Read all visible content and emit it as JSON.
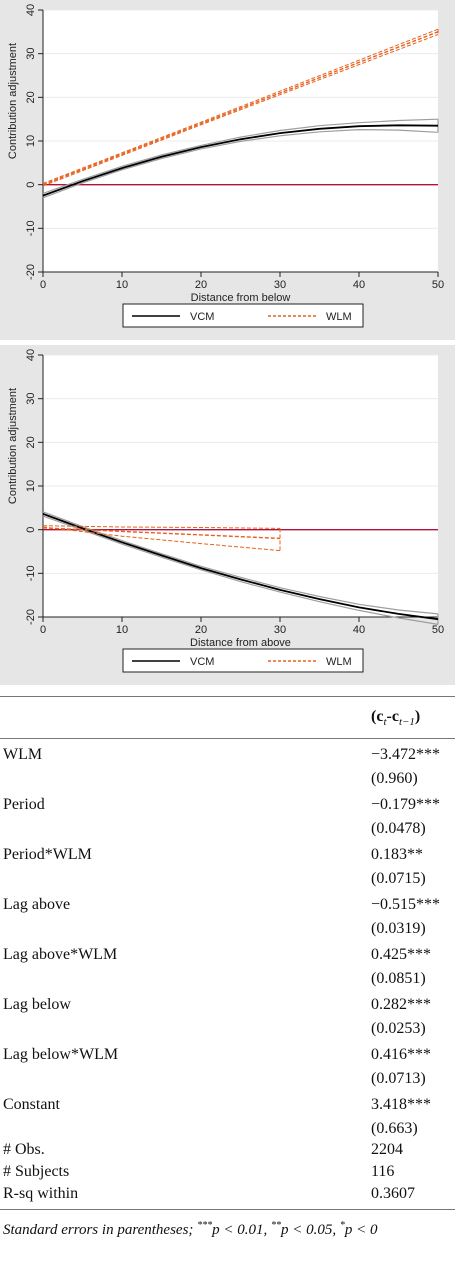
{
  "chart_data": [
    {
      "type": "line",
      "xlabel": "Distance from below",
      "ylabel": "Contribution adjustment",
      "xlim": [
        0,
        50
      ],
      "ylim": [
        -20,
        40
      ],
      "xticks": [
        0,
        10,
        20,
        30,
        40,
        50
      ],
      "yticks": [
        -20,
        -10,
        0,
        10,
        20,
        30,
        40
      ],
      "grid": true,
      "reference_line_y": 0,
      "legend_position": "bottom",
      "series": [
        {
          "name": "VCM",
          "style": "solid",
          "color": "#000000",
          "has_ci": true,
          "ci_color": "#9e9e9e",
          "x": [
            0,
            5,
            10,
            15,
            20,
            25,
            30,
            35,
            40,
            45,
            50
          ],
          "y": [
            -2.5,
            0.8,
            3.8,
            6.4,
            8.6,
            10.4,
            11.8,
            12.8,
            13.4,
            13.6,
            13.5
          ],
          "ci_lower": [
            -3.0,
            0.4,
            3.4,
            6.0,
            8.2,
            9.9,
            11.2,
            12.1,
            12.6,
            12.5,
            12.0
          ],
          "ci_upper": [
            -2.0,
            1.2,
            4.2,
            6.8,
            9.0,
            10.9,
            12.4,
            13.5,
            14.2,
            14.7,
            15.0
          ]
        },
        {
          "name": "WLM",
          "style": "dashed",
          "color": "#e8601c",
          "has_ci": true,
          "ci_color": "#e8601c",
          "x": [
            0,
            10,
            20,
            30,
            40,
            50
          ],
          "y": [
            0.0,
            7.0,
            14.0,
            21.0,
            28.0,
            35.0
          ],
          "ci_lower": [
            -0.3,
            6.7,
            13.7,
            20.6,
            27.5,
            34.4
          ],
          "ci_upper": [
            0.3,
            7.3,
            14.3,
            21.4,
            28.5,
            35.6
          ]
        }
      ]
    },
    {
      "type": "line",
      "xlabel": "Distance from above",
      "ylabel": "Contribution adjustment",
      "xlim": [
        0,
        50
      ],
      "ylim": [
        -20,
        40
      ],
      "xticks": [
        0,
        10,
        20,
        30,
        40,
        50
      ],
      "yticks": [
        -20,
        -10,
        0,
        10,
        20,
        30,
        40
      ],
      "grid": true,
      "reference_line_y": 0,
      "legend_position": "bottom",
      "series": [
        {
          "name": "VCM",
          "style": "solid",
          "color": "#000000",
          "has_ci": true,
          "ci_color": "#9e9e9e",
          "x": [
            0,
            5,
            10,
            15,
            20,
            25,
            30,
            35,
            40,
            45,
            50
          ],
          "y": [
            3.6,
            0.3,
            -2.9,
            -5.9,
            -8.8,
            -11.4,
            -13.8,
            -15.9,
            -17.8,
            -19.3,
            -20.5
          ],
          "ci_lower": [
            3.1,
            -0.1,
            -3.3,
            -6.3,
            -9.2,
            -11.9,
            -14.3,
            -16.5,
            -18.5,
            -20.2,
            -21.7
          ],
          "ci_upper": [
            4.1,
            0.7,
            -2.5,
            -5.5,
            -8.4,
            -10.9,
            -13.3,
            -15.3,
            -17.1,
            -18.4,
            -19.3
          ]
        },
        {
          "name": "WLM",
          "style": "dashed",
          "color": "#e8601c",
          "has_ci": true,
          "ci_color": "#e8601c",
          "x": [
            0,
            10,
            20,
            30
          ],
          "y": [
            0.4,
            -0.4,
            -1.2,
            -2.0
          ],
          "ci_lower": [
            0.6,
            -1.5,
            -3.2,
            -4.8
          ],
          "ci_upper": [
            0.9,
            0.6,
            0.5,
            0.3
          ]
        }
      ]
    }
  ],
  "table": {
    "header": "(c_t - c_{t−1})",
    "rows": [
      {
        "label": "WLM",
        "coef": "−3.472***",
        "se": "(0.960)"
      },
      {
        "label": "Period",
        "coef": "−0.179***",
        "se": "(0.0478)"
      },
      {
        "label": "Period*WLM",
        "coef": "0.183**",
        "se": "(0.0715)"
      },
      {
        "label": "Lag above",
        "coef": "−0.515***",
        "se": "(0.0319)"
      },
      {
        "label": "Lag above*WLM",
        "coef": "0.425***",
        "se": "(0.0851)"
      },
      {
        "label": "Lag below",
        "coef": "0.282***",
        "se": "(0.0253)"
      },
      {
        "label": "Lag below*WLM",
        "coef": "0.416***",
        "se": "(0.0713)"
      },
      {
        "label": "Constant",
        "coef": "3.418***",
        "se": "(0.663)"
      }
    ],
    "stats": [
      {
        "label": "# Obs.",
        "value": "2204"
      },
      {
        "label": "# Subjects",
        "value": "116"
      },
      {
        "label": "R-sq within",
        "value": "0.3607"
      }
    ],
    "note": {
      "prefix": "Standard errors in parentheses; ",
      "s1": "***",
      "t1": "p  <  0.01, ",
      "s2": "**",
      "t2": "p  <  0.05, ",
      "s3": "*",
      "t3": "p < 0"
    }
  }
}
